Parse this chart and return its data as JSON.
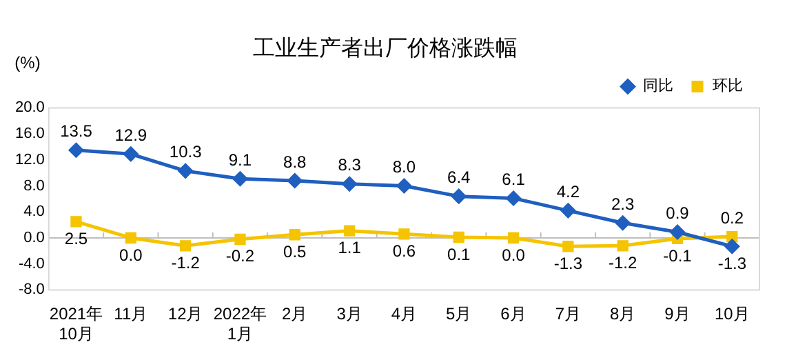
{
  "chart_data": {
    "type": "line",
    "title": "工业生产者出厂价格涨跌幅",
    "ylabel": "(%)",
    "categories": [
      "2021年\n10月",
      "11月",
      "12月",
      "2022年\n1月",
      "2月",
      "3月",
      "4月",
      "5月",
      "6月",
      "7月",
      "8月",
      "9月",
      "10月"
    ],
    "series": [
      {
        "name": "同比",
        "color": "#1f5fbf",
        "marker": "diamond",
        "values": [
          13.5,
          12.9,
          10.3,
          9.1,
          8.8,
          8.3,
          8.0,
          6.4,
          6.1,
          4.2,
          2.3,
          0.9,
          -1.3
        ],
        "value_labels": [
          "13.5",
          "12.9",
          "10.3",
          "9.1",
          "8.8",
          "8.3",
          "8.0",
          "6.4",
          "6.1",
          "4.2",
          "2.3",
          "0.9",
          "-1.3"
        ]
      },
      {
        "name": "环比",
        "color": "#f5c400",
        "marker": "square",
        "values": [
          2.5,
          0.0,
          -1.2,
          -0.2,
          0.5,
          1.1,
          0.6,
          0.1,
          0.0,
          -1.3,
          -1.2,
          -0.1,
          0.2
        ],
        "value_labels": [
          "2.5",
          "0.0",
          "-1.2",
          "-0.2",
          "0.5",
          "1.1",
          "0.6",
          "0.1",
          "0.0",
          "-1.3",
          "-1.2",
          "-0.1",
          "0.2"
        ]
      }
    ],
    "ylim": [
      -8,
      20
    ],
    "yticks": [
      {
        "value": -8,
        "label": "-8.0"
      },
      {
        "value": -4,
        "label": "-4.0"
      },
      {
        "value": 0,
        "label": "0.0"
      },
      {
        "value": 4,
        "label": "4.0"
      },
      {
        "value": 8,
        "label": "8.0"
      },
      {
        "value": 12,
        "label": "12.0"
      },
      {
        "value": 16,
        "label": "16.0"
      },
      {
        "value": 20,
        "label": "20.0"
      }
    ],
    "ref_lines": [
      {
        "axis": "y",
        "value": 0,
        "color": "#bfbfbf"
      }
    ],
    "legend": "top right"
  }
}
